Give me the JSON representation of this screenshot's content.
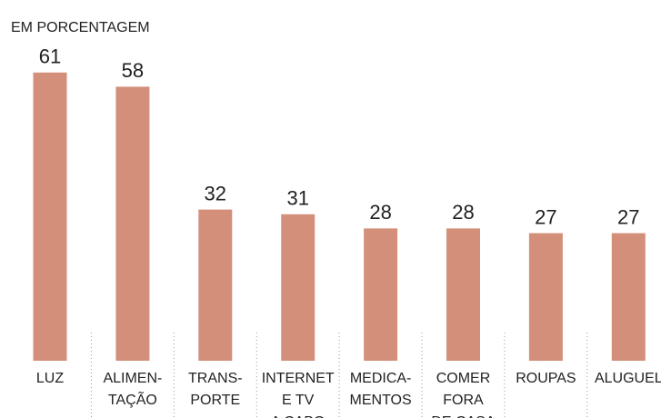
{
  "chart_data": {
    "type": "bar",
    "subtitle": "EM PORCENTAGEM",
    "categories": [
      [
        "LUZ"
      ],
      [
        "ALIMEN-",
        "TAÇÃO"
      ],
      [
        "TRANS-",
        "PORTE"
      ],
      [
        "INTERNET",
        "E TV",
        "A CABO"
      ],
      [
        "MEDICA-",
        "MENTOS"
      ],
      [
        "COMER",
        "FORA",
        "DE CASA"
      ],
      [
        "ROUPAS"
      ],
      [
        "ALUGUEL"
      ]
    ],
    "values": [
      61,
      58,
      32,
      31,
      28,
      28,
      27,
      27
    ],
    "color": "#d48f7a"
  }
}
